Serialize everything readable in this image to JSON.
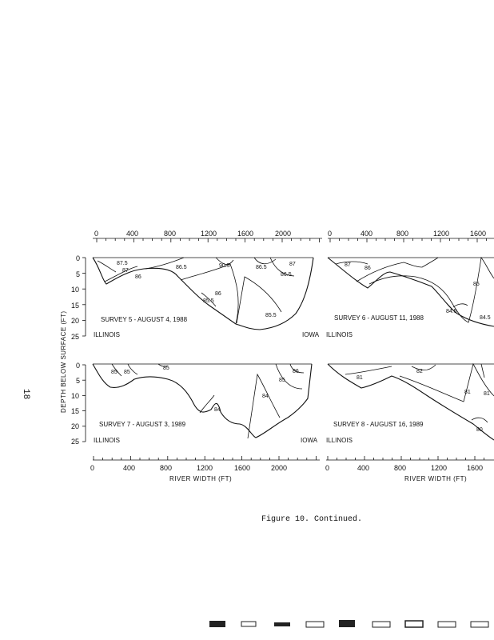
{
  "page_number": "18",
  "caption": "Figure 10.  Continued.",
  "axes": {
    "top_ticks_left": [
      "0",
      "400",
      "800",
      "1200",
      "1600",
      "2000"
    ],
    "top_ticks_right": [
      "0",
      "400",
      "800",
      "1200",
      "1600"
    ],
    "bottom_ticks_left": [
      "0",
      "400",
      "800",
      "1200",
      "1600",
      "2000"
    ],
    "bottom_ticks_right": [
      "0",
      "400",
      "800",
      "1200",
      "1600"
    ],
    "depth_ticks": [
      "0",
      "5",
      "10",
      "15",
      "20",
      "25"
    ],
    "x_title": "RIVER WIDTH (FT)",
    "y_title": "DEPTH BELOW SURFACE (FT)"
  },
  "panels": [
    {
      "id": "survey-5",
      "label": "SURVEY 5 - AUGUST 4, 1988",
      "left_bank": "ILLINOIS",
      "right_bank": "IOWA",
      "isotherms": [
        "87.5",
        "87",
        "86",
        "86.5",
        "90.5",
        "86",
        "86.5",
        "87",
        "86.5",
        "85.5",
        "85.5"
      ]
    },
    {
      "id": "survey-6",
      "label": "SURVEY 6 - AUGUST 11, 1988",
      "left_bank": "ILLINOIS",
      "isotherms": [
        "87",
        "86",
        "85",
        "84.5",
        "84.5"
      ]
    },
    {
      "id": "survey-7",
      "label": "SURVEY 7 - AUGUST 3, 1989",
      "left_bank": "ILLINOIS",
      "right_bank": "IOWA",
      "isotherms": [
        "85",
        "85",
        "85",
        "84",
        "84",
        "85",
        "86"
      ]
    },
    {
      "id": "survey-8",
      "label": "SURVEY 8 - AUGUST 16, 1989",
      "left_bank": "ILLINOIS",
      "isotherms": [
        "81",
        "82",
        "81",
        "81",
        "80"
      ]
    }
  ]
}
